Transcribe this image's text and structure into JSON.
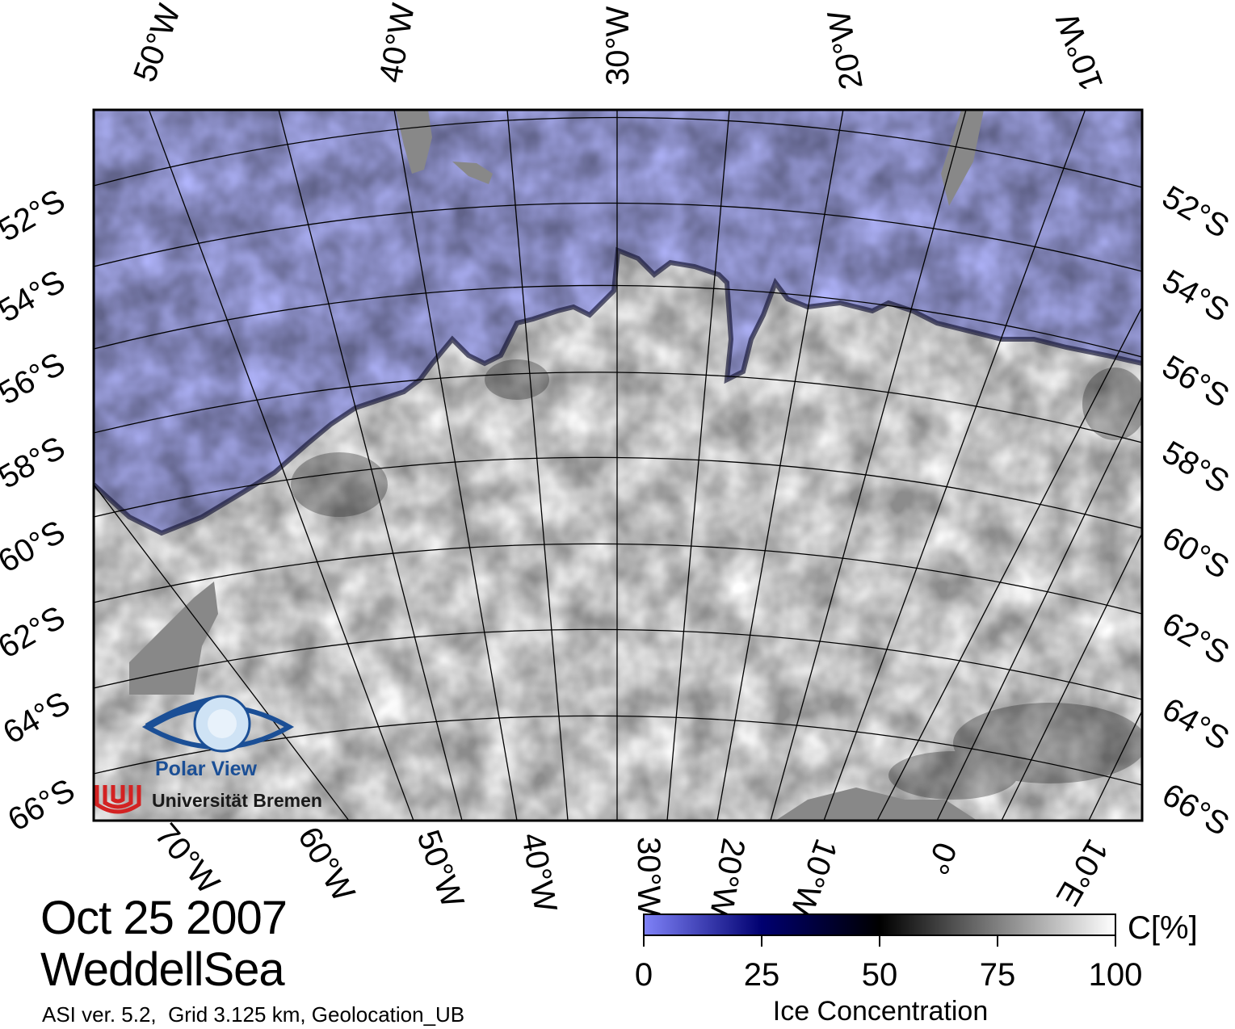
{
  "map": {
    "title_date": "Oct 25 2007",
    "title_region": "WeddellSea",
    "info_line": "ASI ver. 5.2,  Grid 3.125 km, Geolocation_UB",
    "top_lon_labels": [
      "50°W",
      "40°W",
      "30°W",
      "20°W",
      "10°W"
    ],
    "bottom_lon_labels": [
      "70°W",
      "60°W",
      "50°W",
      "40°W",
      "30°W",
      "20°W",
      "10°W",
      "0°",
      "10°E"
    ],
    "lat_labels": [
      "52°S",
      "54°S",
      "56°S",
      "58°S",
      "60°S",
      "62°S",
      "64°S",
      "66°S"
    ],
    "colors": {
      "open_water": "#b0b4fb",
      "land": "#888888",
      "ice_full": "#ffffff",
      "frame": "#000000"
    }
  },
  "colorbar": {
    "title": "Ice Concentration",
    "unit": "C[%]",
    "ticks": [
      "0",
      "25",
      "50",
      "75",
      "100"
    ],
    "tick_values": [
      0,
      25,
      50,
      75,
      100
    ],
    "range": [
      0,
      100
    ],
    "stops": [
      {
        "value": 0,
        "color": "#7f82f8"
      },
      {
        "value": 25,
        "color": "#000070"
      },
      {
        "value": 50,
        "color": "#000000"
      },
      {
        "value": 100,
        "color": "#ffffff"
      }
    ]
  },
  "logo": {
    "title": "Polar View",
    "subtitle": "Universität Bremen"
  }
}
